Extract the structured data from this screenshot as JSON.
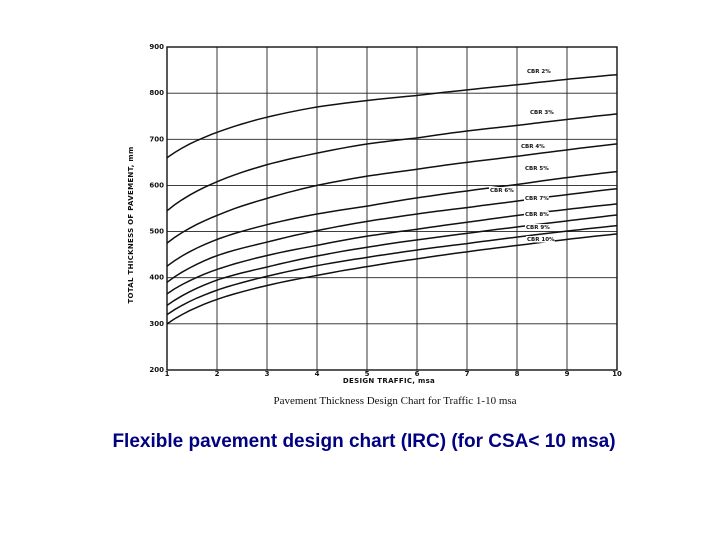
{
  "chart_data": {
    "type": "line",
    "title": "Pavement Thickness Design Chart for Traffic 1-10 msa",
    "xlabel": "DESIGN TRAFFIC, msa",
    "ylabel": "TOTAL THICKNESS OF PAVEMENT, mm",
    "xlim": [
      1,
      10
    ],
    "ylim": [
      200,
      900
    ],
    "x_ticks": [
      1,
      2,
      3,
      4,
      5,
      6,
      7,
      8,
      9,
      10
    ],
    "y_ticks": [
      200,
      300,
      400,
      500,
      600,
      700,
      800,
      900
    ],
    "grid": true,
    "series": [
      {
        "name": "CBR 2%",
        "x": [
          1,
          2,
          3,
          4,
          5,
          6,
          7,
          8,
          9,
          10
        ],
        "values": [
          660,
          715,
          748,
          770,
          784,
          795,
          807,
          818,
          830,
          840
        ]
      },
      {
        "name": "CBR 3%",
        "x": [
          1,
          2,
          3,
          4,
          5,
          6,
          7,
          8,
          9,
          10
        ],
        "values": [
          545,
          608,
          645,
          670,
          690,
          703,
          718,
          730,
          743,
          755
        ]
      },
      {
        "name": "CBR 4%",
        "x": [
          1,
          2,
          3,
          4,
          5,
          6,
          7,
          8,
          9,
          10
        ],
        "values": [
          475,
          535,
          572,
          600,
          620,
          635,
          650,
          663,
          677,
          690
        ]
      },
      {
        "name": "CBR 5%",
        "x": [
          1,
          2,
          3,
          4,
          5,
          6,
          7,
          8,
          9,
          10
        ],
        "values": [
          425,
          483,
          515,
          538,
          555,
          573,
          588,
          602,
          617,
          630
        ]
      },
      {
        "name": "CBR 6%",
        "x": [
          1,
          2,
          3,
          4,
          5,
          6,
          7,
          8,
          9,
          10
        ],
        "values": [
          390,
          448,
          477,
          502,
          522,
          538,
          552,
          566,
          580,
          593
        ]
      },
      {
        "name": "CBR 7%",
        "x": [
          1,
          2,
          3,
          4,
          5,
          6,
          7,
          8,
          9,
          10
        ],
        "values": [
          365,
          418,
          448,
          470,
          490,
          505,
          520,
          535,
          548,
          560
        ]
      },
      {
        "name": "CBR 8%",
        "x": [
          1,
          2,
          3,
          4,
          5,
          6,
          7,
          8,
          9,
          10
        ],
        "values": [
          340,
          395,
          423,
          447,
          466,
          482,
          496,
          510,
          523,
          536
        ]
      },
      {
        "name": "CBR 9%",
        "x": [
          1,
          2,
          3,
          4,
          5,
          6,
          7,
          8,
          9,
          10
        ],
        "values": [
          320,
          373,
          403,
          426,
          444,
          460,
          474,
          488,
          501,
          513
        ]
      },
      {
        "name": "CBR 10%",
        "x": [
          1,
          2,
          3,
          4,
          5,
          6,
          7,
          8,
          9,
          10
        ],
        "values": [
          300,
          353,
          383,
          405,
          424,
          441,
          456,
          470,
          483,
          495
        ]
      }
    ]
  },
  "caption": "Flexible pavement design chart  (IRC) (for CSA< 10 msa)"
}
